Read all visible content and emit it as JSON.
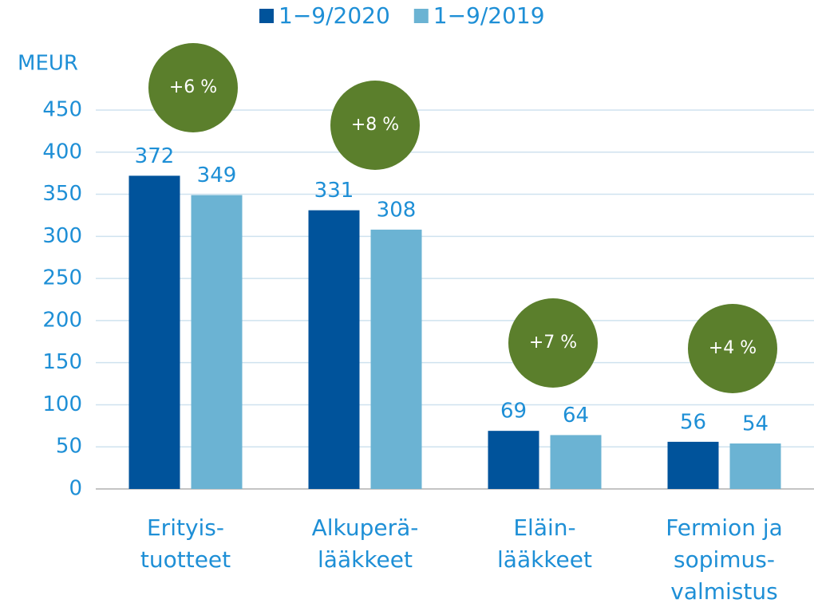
{
  "chart_data": {
    "type": "bar",
    "y_axis_label": "MEUR",
    "categories": [
      "Erityis-\ntuotteet",
      "Alkuperä-\nlääkkeet",
      "Eläin-\nlääkkeet",
      "Fermion ja\nsopimus-\nvalmistus"
    ],
    "series": [
      {
        "name": "1−9/2020",
        "color": "#00539b",
        "values": [
          372,
          331,
          69,
          56
        ]
      },
      {
        "name": "1−9/2019",
        "color": "#6bb3d3",
        "values": [
          349,
          308,
          64,
          54
        ]
      }
    ],
    "annotations": [
      "+6 %",
      "+8 %",
      "+7 %",
      "+4 %"
    ],
    "ylim": [
      0,
      450
    ],
    "yticks": [
      0,
      50,
      100,
      150,
      200,
      250,
      300,
      350,
      400,
      450
    ],
    "grid": true,
    "legend": "top"
  }
}
